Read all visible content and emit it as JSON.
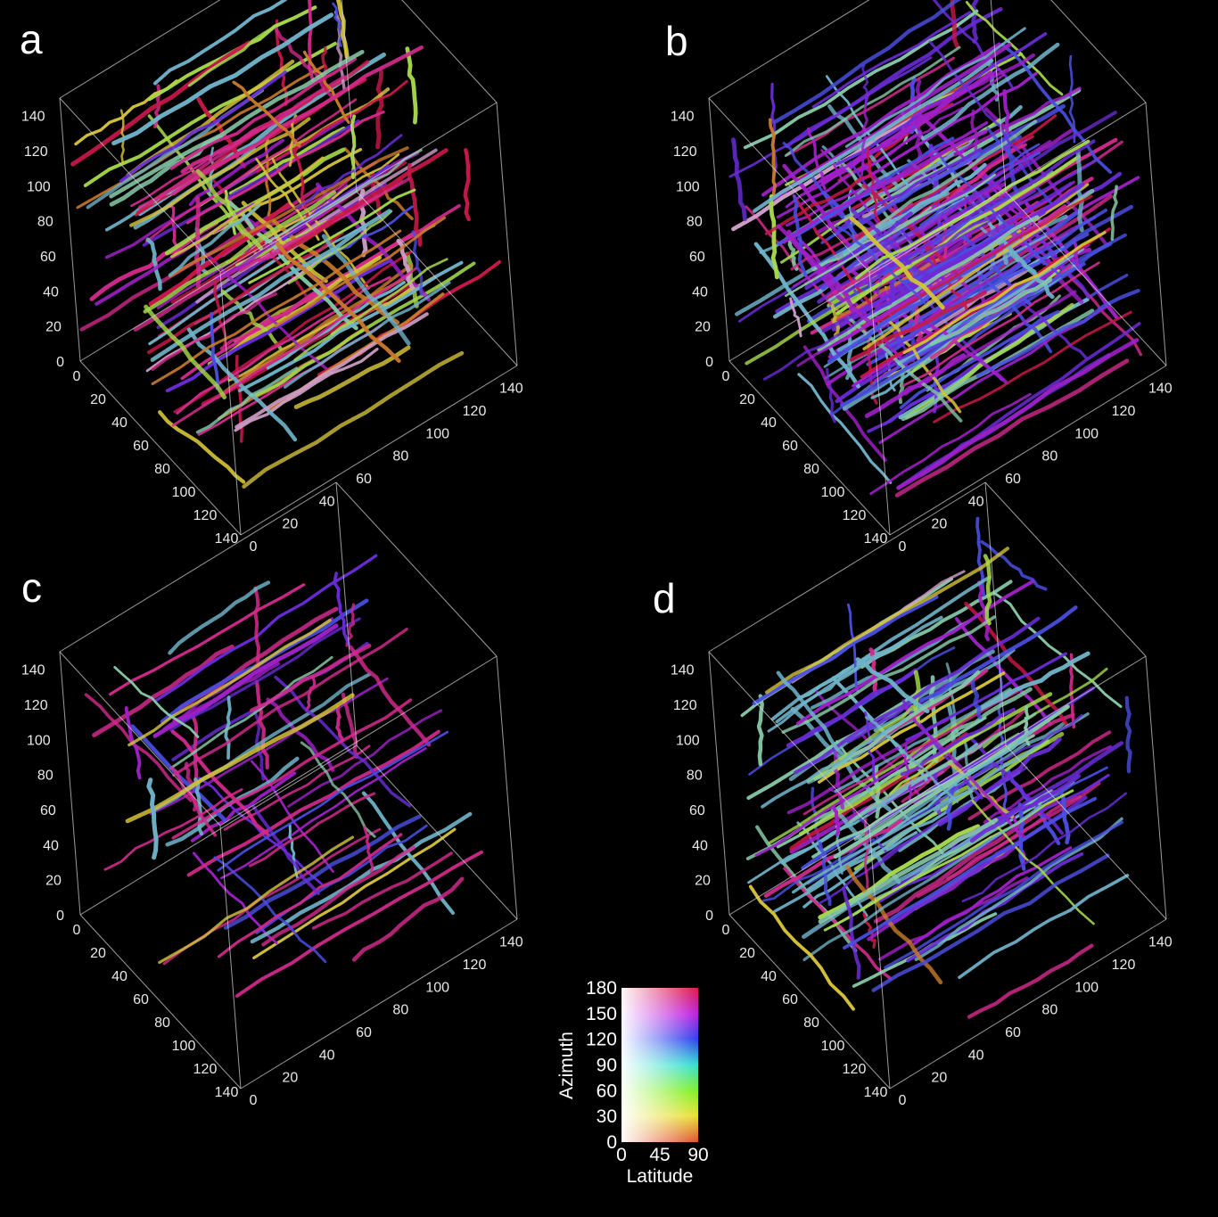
{
  "panels": [
    {
      "id": "a",
      "label": "a",
      "density": "high",
      "dominant": "magenta-red-yellow"
    },
    {
      "id": "b",
      "label": "b",
      "density": "very high",
      "dominant": "blue-purple-cyan"
    },
    {
      "id": "c",
      "label": "c",
      "density": "sparse",
      "dominant": "magenta"
    },
    {
      "id": "d",
      "label": "d",
      "density": "medium",
      "dominant": "cyan-blue-green"
    }
  ],
  "axis": {
    "vertical_ticks": [
      "0",
      "20",
      "40",
      "60",
      "80",
      "100",
      "120",
      "140"
    ],
    "depth_ticks": [
      "0",
      "20",
      "40",
      "60",
      "80",
      "100",
      "120",
      "140"
    ],
    "right_ticks": [
      "0",
      "20",
      "40",
      "60",
      "80",
      "100",
      "120",
      "140"
    ]
  },
  "colorbar": {
    "y_title": "Azimuth",
    "x_title": "Latitude",
    "y_ticks": [
      "0",
      "30",
      "60",
      "90",
      "120",
      "150",
      "180"
    ],
    "x_ticks": [
      "0",
      "45",
      "90"
    ]
  },
  "colors": {
    "background": "#000000",
    "frame": "#cfcfcf",
    "fiber_palette": [
      "#c8184a",
      "#d12a8c",
      "#a020c8",
      "#6a2cd6",
      "#4a4ee0",
      "#6fb3c9",
      "#86c9a9",
      "#a6d84a",
      "#d4c23a",
      "#c97a2a",
      "#d0a0c8"
    ]
  }
}
